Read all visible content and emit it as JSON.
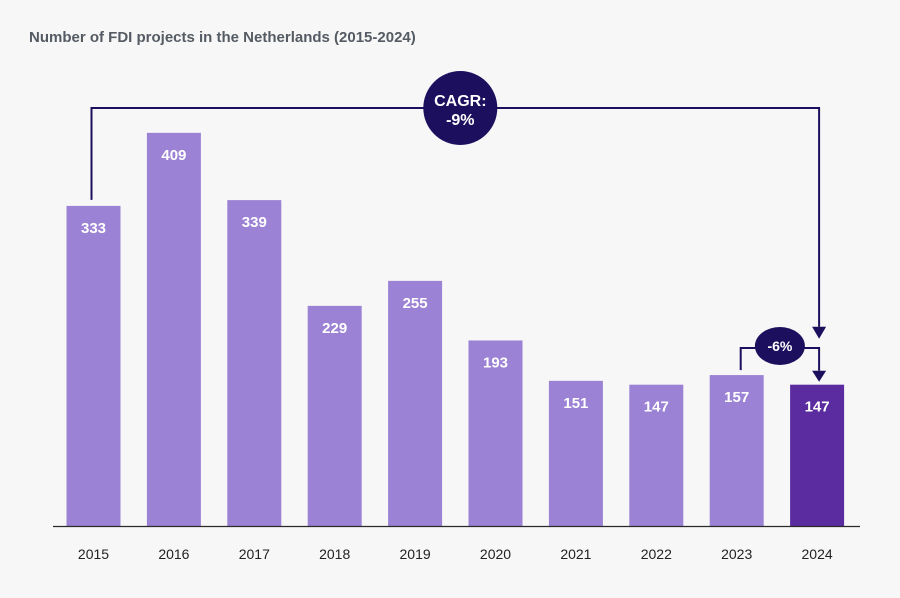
{
  "chart_data": {
    "type": "bar",
    "title": "Number of FDI projects in the Netherlands (2015-2024)",
    "xlabel": "",
    "ylabel": "",
    "ylim": [
      0,
      450
    ],
    "grid": false,
    "legend": "none",
    "categories": [
      "2015",
      "2016",
      "2017",
      "2018",
      "2019",
      "2020",
      "2021",
      "2022",
      "2023",
      "2024"
    ],
    "values": [
      333,
      409,
      339,
      229,
      255,
      193,
      151,
      147,
      157,
      147
    ],
    "highlight_index": 9,
    "annotations": {
      "cagr": {
        "line1": "CAGR:",
        "line2": "-9%",
        "from": "2015",
        "to": "2024"
      },
      "yoy": {
        "text": "-6%",
        "from": "2023",
        "to": "2024"
      }
    }
  },
  "colors": {
    "bar": "#9b82d4",
    "bar_highlight": "#5a2ca0",
    "annotation": "#1c0f5e",
    "axis": "#2a2a2a"
  }
}
